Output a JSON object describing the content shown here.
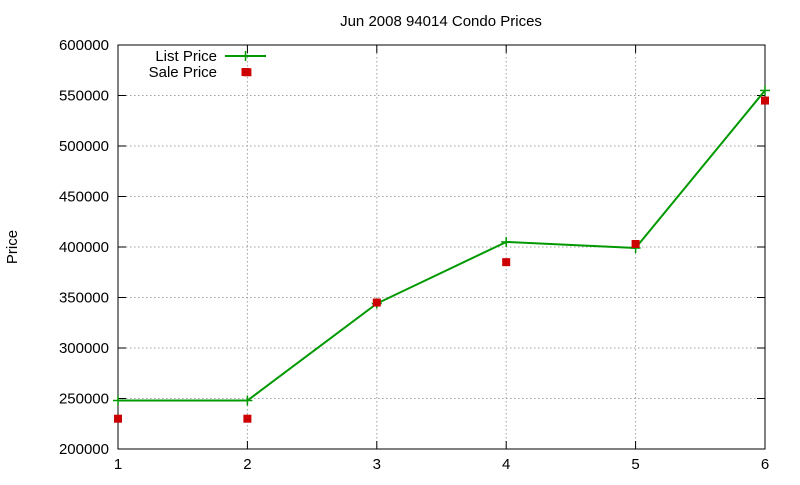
{
  "chart_data": {
    "type": "line",
    "title": "Jun 2008 94014 Condo Prices",
    "xlabel": "",
    "ylabel": "Price",
    "xlim": [
      1,
      6
    ],
    "ylim": [
      200000,
      600000
    ],
    "x_ticks": [
      "1",
      "2",
      "3",
      "4",
      "5",
      "6"
    ],
    "y_ticks": [
      "200000",
      "250000",
      "300000",
      "350000",
      "400000",
      "450000",
      "500000",
      "550000",
      "600000"
    ],
    "grid": true,
    "legend_position": "top-left",
    "series": [
      {
        "name": "List Price",
        "style": "line-with-plus-markers",
        "color": "#009900",
        "x": [
          1,
          2,
          3,
          4,
          5,
          6
        ],
        "y": [
          248000,
          248000,
          344000,
          405000,
          399000,
          555000
        ]
      },
      {
        "name": "Sale Price",
        "style": "square-markers",
        "color": "#cc0000",
        "x": [
          1,
          2,
          2,
          3,
          4,
          5,
          6
        ],
        "y": [
          230000,
          230000,
          573000,
          345000,
          385000,
          403000,
          545000
        ]
      }
    ]
  }
}
